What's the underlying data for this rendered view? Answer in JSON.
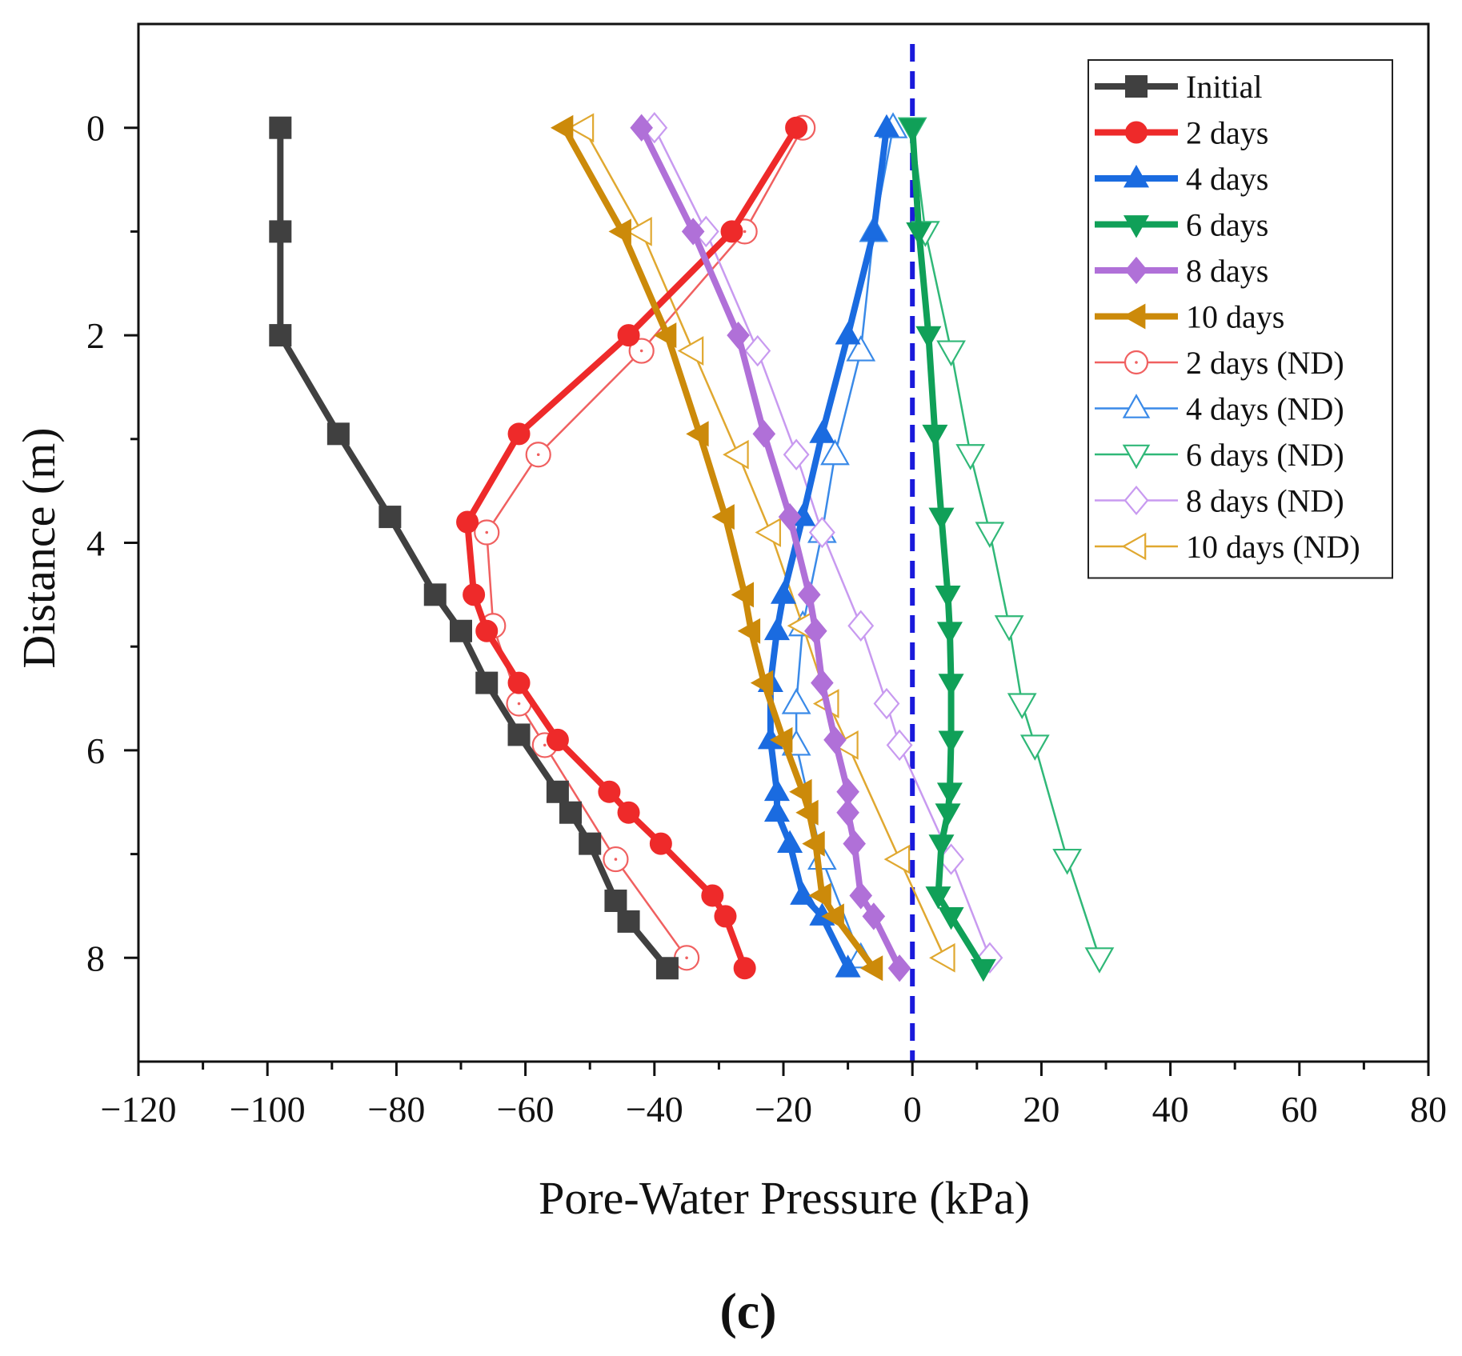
{
  "panel_label": "(c)",
  "chart_data": {
    "type": "line",
    "title": "",
    "xlabel": "Pore-Water Pressure (kPa)",
    "ylabel": "Distance (m)",
    "xlim": [
      -120,
      80
    ],
    "ylim": [
      -1,
      9
    ],
    "y_inverted": true,
    "x_ticks": [
      -120,
      -100,
      -80,
      -60,
      -40,
      -20,
      0,
      20,
      40,
      60,
      80
    ],
    "x_tick_labels": [
      "−120",
      "−100",
      "−80",
      "−60",
      "−40",
      "−20",
      "0",
      "20",
      "40",
      "60",
      "80"
    ],
    "y_ticks": [
      0,
      2,
      4,
      6,
      8
    ],
    "y_tick_labels": [
      "0",
      "2",
      "4",
      "6",
      "8"
    ],
    "reference_line": {
      "x": 0,
      "style": "dashed",
      "color": "#1a1adb"
    },
    "legend_position": "top-right",
    "series": [
      {
        "name": "Initial",
        "color": "#404040",
        "marker": "square",
        "filled": true,
        "x": [
          -98,
          -98,
          -98,
          -89,
          -81,
          -74,
          -70,
          -66,
          -61,
          -55,
          -53,
          -50,
          -46,
          -44,
          -38
        ],
        "y": [
          0,
          1,
          2,
          2.95,
          3.75,
          4.5,
          4.85,
          5.35,
          5.85,
          6.4,
          6.6,
          6.9,
          7.45,
          7.65,
          8.1
        ]
      },
      {
        "name": "2 days",
        "color": "#ee2a2a",
        "marker": "circle",
        "filled": true,
        "x": [
          -18,
          -28,
          -44,
          -61,
          -69,
          -68,
          -66,
          -61,
          -55,
          -47,
          -44,
          -39,
          -31,
          -29,
          -26
        ],
        "y": [
          0,
          1,
          2,
          2.95,
          3.8,
          4.5,
          4.85,
          5.35,
          5.9,
          6.4,
          6.6,
          6.9,
          7.4,
          7.6,
          8.1
        ]
      },
      {
        "name": "4 days",
        "color": "#1a6be0",
        "marker": "triangle-up",
        "filled": true,
        "x": [
          -4,
          -6,
          -10,
          -14,
          -17,
          -20,
          -21,
          -22,
          -22,
          -21,
          -21,
          -19,
          -17,
          -14,
          -10
        ],
        "y": [
          0,
          1,
          2,
          2.95,
          3.75,
          4.5,
          4.85,
          5.35,
          5.9,
          6.4,
          6.6,
          6.9,
          7.4,
          7.6,
          8.1
        ]
      },
      {
        "name": "6 days",
        "color": "#10a058",
        "marker": "triangle-down",
        "filled": true,
        "x": [
          0,
          1,
          2.5,
          3.5,
          4.5,
          5.5,
          5.8,
          6,
          6,
          5.8,
          5.5,
          4.5,
          4,
          6,
          11
        ],
        "y": [
          0,
          1,
          2,
          2.95,
          3.75,
          4.5,
          4.85,
          5.35,
          5.9,
          6.4,
          6.6,
          6.9,
          7.4,
          7.6,
          8.1
        ]
      },
      {
        "name": "8 days",
        "color": "#b070d8",
        "marker": "diamond",
        "filled": true,
        "x": [
          -42,
          -34,
          -27,
          -23,
          -19,
          -16,
          -15,
          -14,
          -12,
          -10,
          -10,
          -9,
          -8,
          -6,
          -2
        ],
        "y": [
          0,
          1,
          2,
          2.95,
          3.75,
          4.5,
          4.85,
          5.35,
          5.9,
          6.4,
          6.6,
          6.9,
          7.4,
          7.6,
          8.1
        ]
      },
      {
        "name": "10 days",
        "color": "#cc8a0a",
        "marker": "triangle-left",
        "filled": true,
        "x": [
          -54,
          -45,
          -38,
          -33,
          -29,
          -26,
          -25,
          -23,
          -20,
          -17,
          -16,
          -15,
          -14,
          -12,
          -6
        ],
        "y": [
          0,
          1,
          2,
          2.95,
          3.75,
          4.5,
          4.85,
          5.35,
          5.9,
          6.4,
          6.6,
          6.9,
          7.4,
          7.6,
          8.1
        ]
      },
      {
        "name": "2 days (ND)",
        "color": "#f06060",
        "marker": "circle",
        "filled": false,
        "x": [
          -17,
          -26,
          -42,
          -58,
          -66,
          -65,
          -61,
          -57,
          -46,
          -35
        ],
        "y": [
          0,
          1,
          2.15,
          3.15,
          3.9,
          4.8,
          5.55,
          5.95,
          7.05,
          8
        ]
      },
      {
        "name": "4 days (ND)",
        "color": "#3a8ae8",
        "marker": "triangle-up",
        "filled": false,
        "x": [
          -3,
          -6,
          -8,
          -12,
          -14,
          -17,
          -18,
          -18,
          -14,
          -8
        ],
        "y": [
          0,
          1,
          2.15,
          3.15,
          3.9,
          4.8,
          5.55,
          5.95,
          7.05,
          8
        ]
      },
      {
        "name": "6 days (ND)",
        "color": "#30b878",
        "marker": "triangle-down",
        "filled": false,
        "x": [
          0,
          2,
          6,
          9,
          12,
          15,
          17,
          19,
          24,
          29
        ],
        "y": [
          0,
          1,
          2.15,
          3.15,
          3.9,
          4.8,
          5.55,
          5.95,
          7.05,
          8
        ]
      },
      {
        "name": "8 days (ND)",
        "color": "#c89af0",
        "marker": "diamond",
        "filled": false,
        "x": [
          -40,
          -32,
          -24,
          -18,
          -14,
          -8,
          -4,
          -2,
          6,
          12
        ],
        "y": [
          0,
          1,
          2.15,
          3.15,
          3.9,
          4.8,
          5.55,
          5.95,
          7.05,
          8
        ]
      },
      {
        "name": "10 days (ND)",
        "color": "#e0a830",
        "marker": "triangle-left",
        "filled": false,
        "x": [
          -51,
          -42,
          -34,
          -27,
          -22,
          -17,
          -13,
          -10,
          -2,
          5
        ],
        "y": [
          0,
          1,
          2.15,
          3.15,
          3.9,
          4.8,
          5.55,
          5.95,
          7.05,
          8
        ]
      }
    ]
  }
}
